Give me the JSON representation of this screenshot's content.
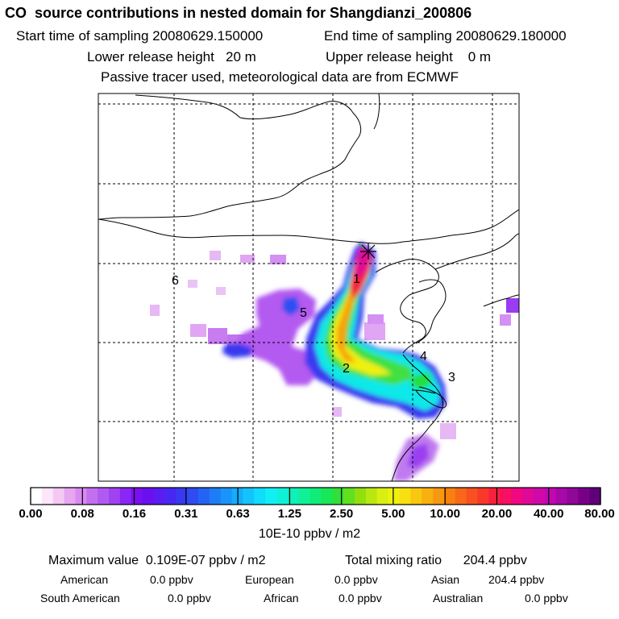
{
  "header": {
    "title": "CO  source contributions in nested domain for Shangdianzi_200806",
    "start_label": "Start time of sampling",
    "start_value": "20080629.150000",
    "end_label": "End time of sampling",
    "end_value": "20080629.180000",
    "lower_label": "Lower release height",
    "lower_value": "20 m",
    "upper_label": "Upper release height",
    "upper_value": "0 m",
    "note": "Passive tracer used, meteorological data are from ECMWF"
  },
  "map": {
    "region_labels": [
      "1",
      "2",
      "3",
      "4",
      "5",
      "6"
    ]
  },
  "colorbar": {
    "labels": [
      "0.00",
      "0.08",
      "0.16",
      "0.31",
      "0.63",
      "1.25",
      "2.50",
      "5.00",
      "10.00",
      "20.00",
      "40.00",
      "80.00"
    ],
    "colors": [
      "#ffffff",
      "#fbe6fb",
      "#f3c9f3",
      "#e7a6f1",
      "#d98af0",
      "#c46ff0",
      "#b25af0",
      "#a042f2",
      "#8b26f4",
      "#7a10f2",
      "#6a10f0",
      "#5a1cf0",
      "#4828f0",
      "#3838f0",
      "#2e4cf2",
      "#2464f4",
      "#1e7cf6",
      "#1994f8",
      "#15acfa",
      "#13c4fc",
      "#10dcfc",
      "#10f0f4",
      "#10f0d8",
      "#10f0b8",
      "#10f098",
      "#10ec78",
      "#18e858",
      "#30e038",
      "#60e020",
      "#90e010",
      "#b8e810",
      "#d8f010",
      "#f0f010",
      "#f8e010",
      "#f8c810",
      "#f8b010",
      "#f89810",
      "#f88010",
      "#f86818",
      "#f85020",
      "#f83828",
      "#f82040",
      "#f81060",
      "#f00880",
      "#e00898",
      "#d008a8",
      "#c008b0",
      "#a808a8",
      "#900898",
      "#780088",
      "#600078"
    ],
    "units": "10E-10 ppbv / m2"
  },
  "stats": {
    "max_label": "Maximum value",
    "max_value": "0.109E-07 ppbv / m2",
    "total_label": "Total mixing ratio",
    "total_value": "204.4 ppbv",
    "regions": [
      {
        "name": "American",
        "value": "0.0 ppbv"
      },
      {
        "name": "European",
        "value": "0.0 ppbv"
      },
      {
        "name": "Asian",
        "value": "204.4 ppbv"
      },
      {
        "name": "South American",
        "value": "0.0 ppbv"
      },
      {
        "name": "African",
        "value": "0.0 ppbv"
      },
      {
        "name": "Australian",
        "value": "0.0 ppbv"
      }
    ]
  }
}
